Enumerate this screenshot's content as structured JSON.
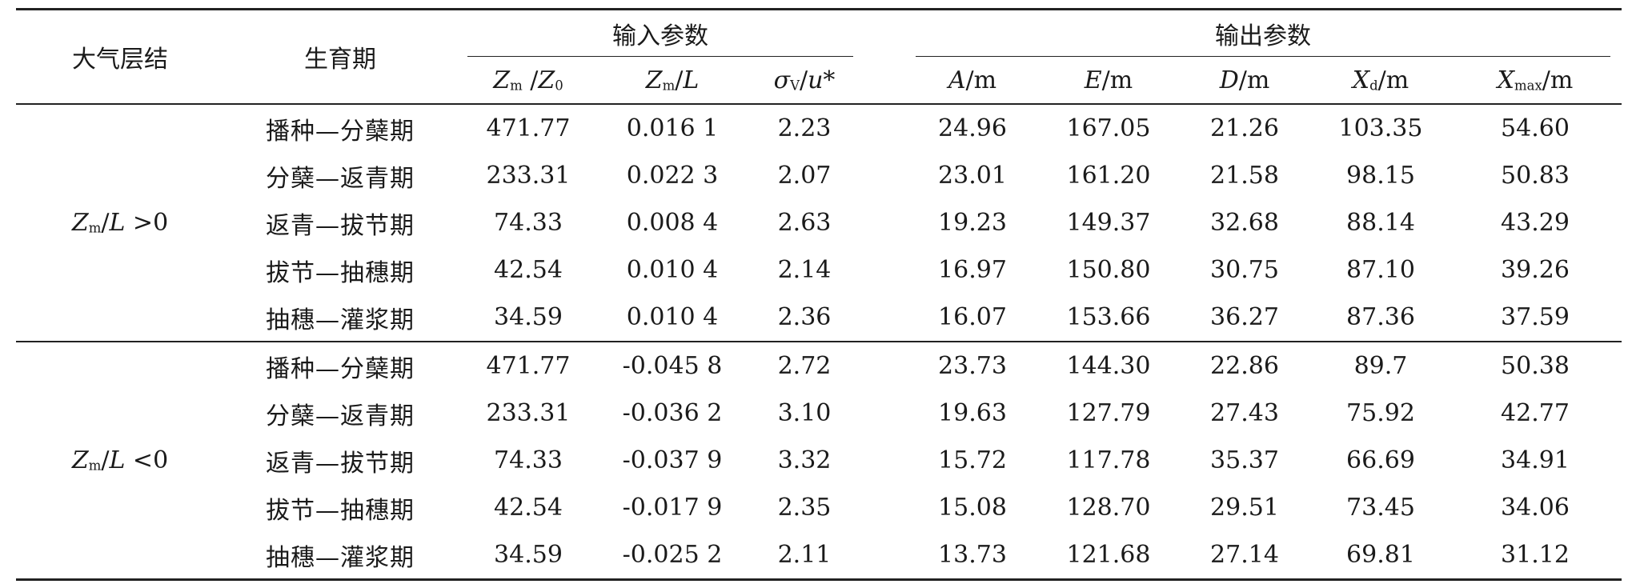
{
  "header": {
    "col_stratification": "大气层结",
    "col_growth_stage": "生育期",
    "group_input": "输入参数",
    "group_output": "输出参数",
    "input_cols": [
      {
        "main": "Z",
        "sub": "m",
        "rest": " /",
        "main2": "Z",
        "sub2": "0",
        "tail": ""
      },
      {
        "main": "Z",
        "sub": "m",
        "rest": "/",
        "main2": "L",
        "sub2": "",
        "tail": ""
      },
      {
        "main": "σ",
        "sub": "V",
        "rest": "/",
        "main2": "u",
        "sub2": "",
        "tail": "*"
      }
    ],
    "output_cols": [
      {
        "main": "A",
        "sub": "",
        "rest": "/m"
      },
      {
        "main": "E",
        "sub": "",
        "rest": "/m"
      },
      {
        "main": "D",
        "sub": "",
        "rest": "/m"
      },
      {
        "main": "X",
        "sub": "d",
        "rest": "/m"
      },
      {
        "main": "X",
        "sub": "max",
        "rest": "/m"
      }
    ]
  },
  "groups": [
    {
      "label_main": "Z",
      "label_sub": "m",
      "label_rest": "/",
      "label_l": "L",
      "label_tail": " >0",
      "rows": [
        {
          "stage": "播种—分蘖期",
          "zm_z0": "471.77",
          "zm_l": "0.016 1",
          "sigma_u": "2.23",
          "A": "24.96",
          "E": "167.05",
          "D": "21.26",
          "Xd": "103.35",
          "Xmax": "54.60"
        },
        {
          "stage": "分蘖—返青期",
          "zm_z0": "233.31",
          "zm_l": "0.022 3",
          "sigma_u": "2.07",
          "A": "23.01",
          "E": "161.20",
          "D": "21.58",
          "Xd": "98.15",
          "Xmax": "50.83"
        },
        {
          "stage": "返青—拔节期",
          "zm_z0": "74.33",
          "zm_l": "0.008 4",
          "sigma_u": "2.63",
          "A": "19.23",
          "E": "149.37",
          "D": "32.68",
          "Xd": "88.14",
          "Xmax": "43.29"
        },
        {
          "stage": "拔节—抽穗期",
          "zm_z0": "42.54",
          "zm_l": "0.010 4",
          "sigma_u": "2.14",
          "A": "16.97",
          "E": "150.80",
          "D": "30.75",
          "Xd": "87.10",
          "Xmax": "39.26"
        },
        {
          "stage": "抽穗—灌浆期",
          "zm_z0": "34.59",
          "zm_l": "0.010 4",
          "sigma_u": "2.36",
          "A": "16.07",
          "E": "153.66",
          "D": "36.27",
          "Xd": "87.36",
          "Xmax": "37.59"
        }
      ]
    },
    {
      "label_main": "Z",
      "label_sub": "m",
      "label_rest": "/",
      "label_l": "L",
      "label_tail": " <0",
      "rows": [
        {
          "stage": "播种—分蘖期",
          "zm_z0": "471.77",
          "zm_l": "-0.045 8",
          "sigma_u": "2.72",
          "A": "23.73",
          "E": "144.30",
          "D": "22.86",
          "Xd": "89.7",
          "Xmax": "50.38"
        },
        {
          "stage": "分蘖—返青期",
          "zm_z0": "233.31",
          "zm_l": "-0.036 2",
          "sigma_u": "3.10",
          "A": "19.63",
          "E": "127.79",
          "D": "27.43",
          "Xd": "75.92",
          "Xmax": "42.77"
        },
        {
          "stage": "返青—拔节期",
          "zm_z0": "74.33",
          "zm_l": "-0.037 9",
          "sigma_u": "3.32",
          "A": "15.72",
          "E": "117.78",
          "D": "35.37",
          "Xd": "66.69",
          "Xmax": "34.91"
        },
        {
          "stage": "拔节—抽穗期",
          "zm_z0": "42.54",
          "zm_l": "-0.017 9",
          "sigma_u": "2.35",
          "A": "15.08",
          "E": "128.70",
          "D": "29.51",
          "Xd": "73.45",
          "Xmax": "34.06"
        },
        {
          "stage": "抽穗—灌浆期",
          "zm_z0": "34.59",
          "zm_l": "-0.025 2",
          "sigma_u": "2.11",
          "A": "13.73",
          "E": "121.68",
          "D": "27.14",
          "Xd": "69.81",
          "Xmax": "31.12"
        }
      ]
    }
  ]
}
